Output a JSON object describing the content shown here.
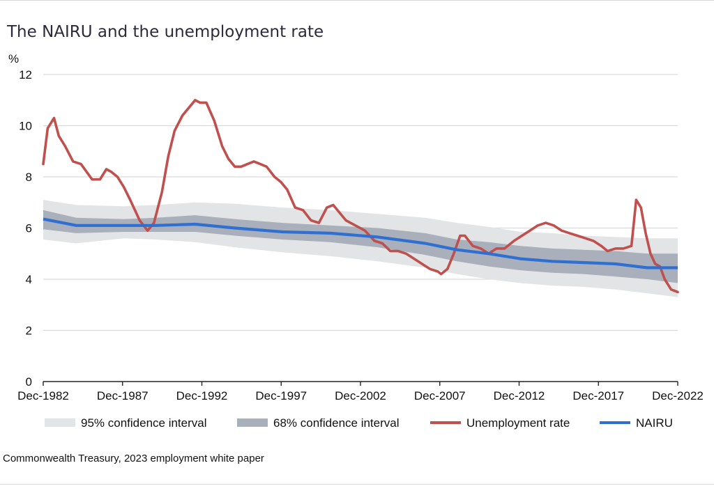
{
  "page": {
    "title": "The NAIRU and the unemployment rate",
    "source": "Commonwealth Treasury, 2023 employment white paper"
  },
  "chart_data": {
    "type": "line",
    "title": "The NAIRU and the unemployment rate",
    "ylabel": "%",
    "xlim": [
      1982.92,
      2022.92
    ],
    "ylim": [
      0,
      12
    ],
    "y_ticks": [
      0,
      2,
      4,
      6,
      8,
      10,
      12
    ],
    "x_ticks": [
      {
        "value": 1982.92,
        "label": "Dec-1982"
      },
      {
        "value": 1987.92,
        "label": "Dec-1987"
      },
      {
        "value": 1992.92,
        "label": "Dec-1992"
      },
      {
        "value": 1997.92,
        "label": "Dec-1997"
      },
      {
        "value": 2002.92,
        "label": "Dec-2002"
      },
      {
        "value": 2007.92,
        "label": "Dec-2007"
      },
      {
        "value": 2012.92,
        "label": "Dec-2012"
      },
      {
        "value": 2017.92,
        "label": "Dec-2017"
      },
      {
        "value": 2022.92,
        "label": "Dec-2022"
      }
    ],
    "grid": "horizontal",
    "legend_position": "bottom",
    "colors": {
      "ci95": "#e3e4e6",
      "ci68": "#a9afbb",
      "unemployment": "#c0504d",
      "nairu": "#2e6fd0",
      "grid": "#d9d9d9",
      "axis": "#222222"
    },
    "legend": [
      {
        "key": "ci95",
        "label": "95% confidence interval",
        "kind": "band"
      },
      {
        "key": "ci68",
        "label": "68% confidence interval",
        "kind": "band"
      },
      {
        "key": "unemployment",
        "label": "Unemployment rate",
        "kind": "line"
      },
      {
        "key": "nairu",
        "label": "NAIRU",
        "kind": "line"
      }
    ],
    "series": {
      "nairu": {
        "name": "NAIRU",
        "x": [
          1982.92,
          1985,
          1988,
          1990,
          1992.5,
          1995,
          1998,
          2001,
          2004,
          2007,
          2009,
          2011,
          2013,
          2015,
          2017,
          2019,
          2021,
          2022.92
        ],
        "values": [
          6.35,
          6.1,
          6.1,
          6.1,
          6.15,
          6.0,
          5.85,
          5.8,
          5.65,
          5.4,
          5.15,
          5.0,
          4.8,
          4.7,
          4.65,
          4.6,
          4.45,
          4.45
        ]
      },
      "ci68": {
        "name": "68% confidence interval",
        "x": [
          1982.92,
          1985,
          1988,
          1990,
          1992.5,
          1995,
          1998,
          2001,
          2004,
          2007,
          2009,
          2011,
          2013,
          2015,
          2017,
          2019,
          2021,
          2022.92
        ],
        "lower": [
          5.95,
          5.8,
          5.85,
          5.85,
          5.85,
          5.7,
          5.55,
          5.45,
          5.25,
          4.95,
          4.7,
          4.5,
          4.35,
          4.25,
          4.2,
          4.1,
          4.0,
          3.85
        ],
        "upper": [
          6.7,
          6.4,
          6.35,
          6.4,
          6.5,
          6.35,
          6.2,
          6.1,
          6.0,
          5.8,
          5.55,
          5.45,
          5.3,
          5.2,
          5.15,
          5.1,
          5.0,
          5.0
        ]
      },
      "ci95": {
        "name": "95% confidence interval",
        "x": [
          1982.92,
          1985,
          1988,
          1990,
          1992.5,
          1995,
          1998,
          2001,
          2004,
          2007,
          2009,
          2011,
          2013,
          2015,
          2017,
          2019,
          2021,
          2022.92
        ],
        "lower": [
          5.55,
          5.4,
          5.6,
          5.55,
          5.45,
          5.25,
          5.05,
          4.9,
          4.7,
          4.45,
          4.2,
          4.0,
          3.85,
          3.75,
          3.7,
          3.6,
          3.45,
          3.3
        ],
        "upper": [
          7.1,
          6.9,
          6.85,
          6.9,
          7.0,
          6.95,
          6.8,
          6.7,
          6.55,
          6.4,
          6.2,
          6.05,
          5.85,
          5.8,
          5.7,
          5.65,
          5.6,
          5.6
        ]
      },
      "unemployment": {
        "name": "Unemployment rate",
        "x": [
          1982.92,
          1983.2,
          1983.6,
          1983.9,
          1984.3,
          1984.8,
          1985.3,
          1986.0,
          1986.5,
          1986.9,
          1987.2,
          1987.6,
          1988.0,
          1988.4,
          1988.7,
          1989.0,
          1989.5,
          1989.9,
          1990.4,
          1990.8,
          1991.2,
          1991.7,
          1992.1,
          1992.5,
          1992.8,
          1993.2,
          1993.7,
          1994.2,
          1994.6,
          1995.0,
          1995.4,
          1995.8,
          1996.2,
          1996.6,
          1997.0,
          1997.5,
          1997.9,
          1998.3,
          1998.8,
          1999.3,
          1999.8,
          2000.3,
          2000.8,
          2001.2,
          2001.6,
          2002.0,
          2002.6,
          2003.2,
          2003.8,
          2004.3,
          2004.8,
          2005.3,
          2005.8,
          2006.3,
          2006.8,
          2007.3,
          2007.8,
          2008.0,
          2008.4,
          2008.8,
          2009.2,
          2009.5,
          2010.0,
          2010.5,
          2011.0,
          2011.5,
          2012.0,
          2012.6,
          2013.1,
          2013.6,
          2014.1,
          2014.6,
          2015.1,
          2015.6,
          2016.1,
          2016.6,
          2017.1,
          2017.6,
          2018.1,
          2018.5,
          2019.0,
          2019.5,
          2020.0,
          2020.3,
          2020.6,
          2020.9,
          2021.2,
          2021.5,
          2021.8,
          2022.1,
          2022.5,
          2022.92
        ],
        "values": [
          8.5,
          9.9,
          10.3,
          9.6,
          9.2,
          8.6,
          8.5,
          7.9,
          7.9,
          8.3,
          8.2,
          8.0,
          7.6,
          7.1,
          6.7,
          6.3,
          5.9,
          6.2,
          7.4,
          8.8,
          9.8,
          10.4,
          10.7,
          11.0,
          10.9,
          10.9,
          10.2,
          9.2,
          8.7,
          8.4,
          8.4,
          8.5,
          8.6,
          8.5,
          8.4,
          8.0,
          7.8,
          7.5,
          6.8,
          6.7,
          6.3,
          6.2,
          6.8,
          6.9,
          6.6,
          6.3,
          6.1,
          5.9,
          5.5,
          5.4,
          5.1,
          5.1,
          5.0,
          4.8,
          4.6,
          4.4,
          4.3,
          4.2,
          4.4,
          5.0,
          5.7,
          5.7,
          5.3,
          5.2,
          5.0,
          5.2,
          5.2,
          5.5,
          5.7,
          5.9,
          6.1,
          6.2,
          6.1,
          5.9,
          5.8,
          5.7,
          5.6,
          5.5,
          5.3,
          5.1,
          5.2,
          5.2,
          5.3,
          7.1,
          6.8,
          5.8,
          5.0,
          4.6,
          4.5,
          4.0,
          3.6,
          3.5
        ]
      }
    }
  }
}
